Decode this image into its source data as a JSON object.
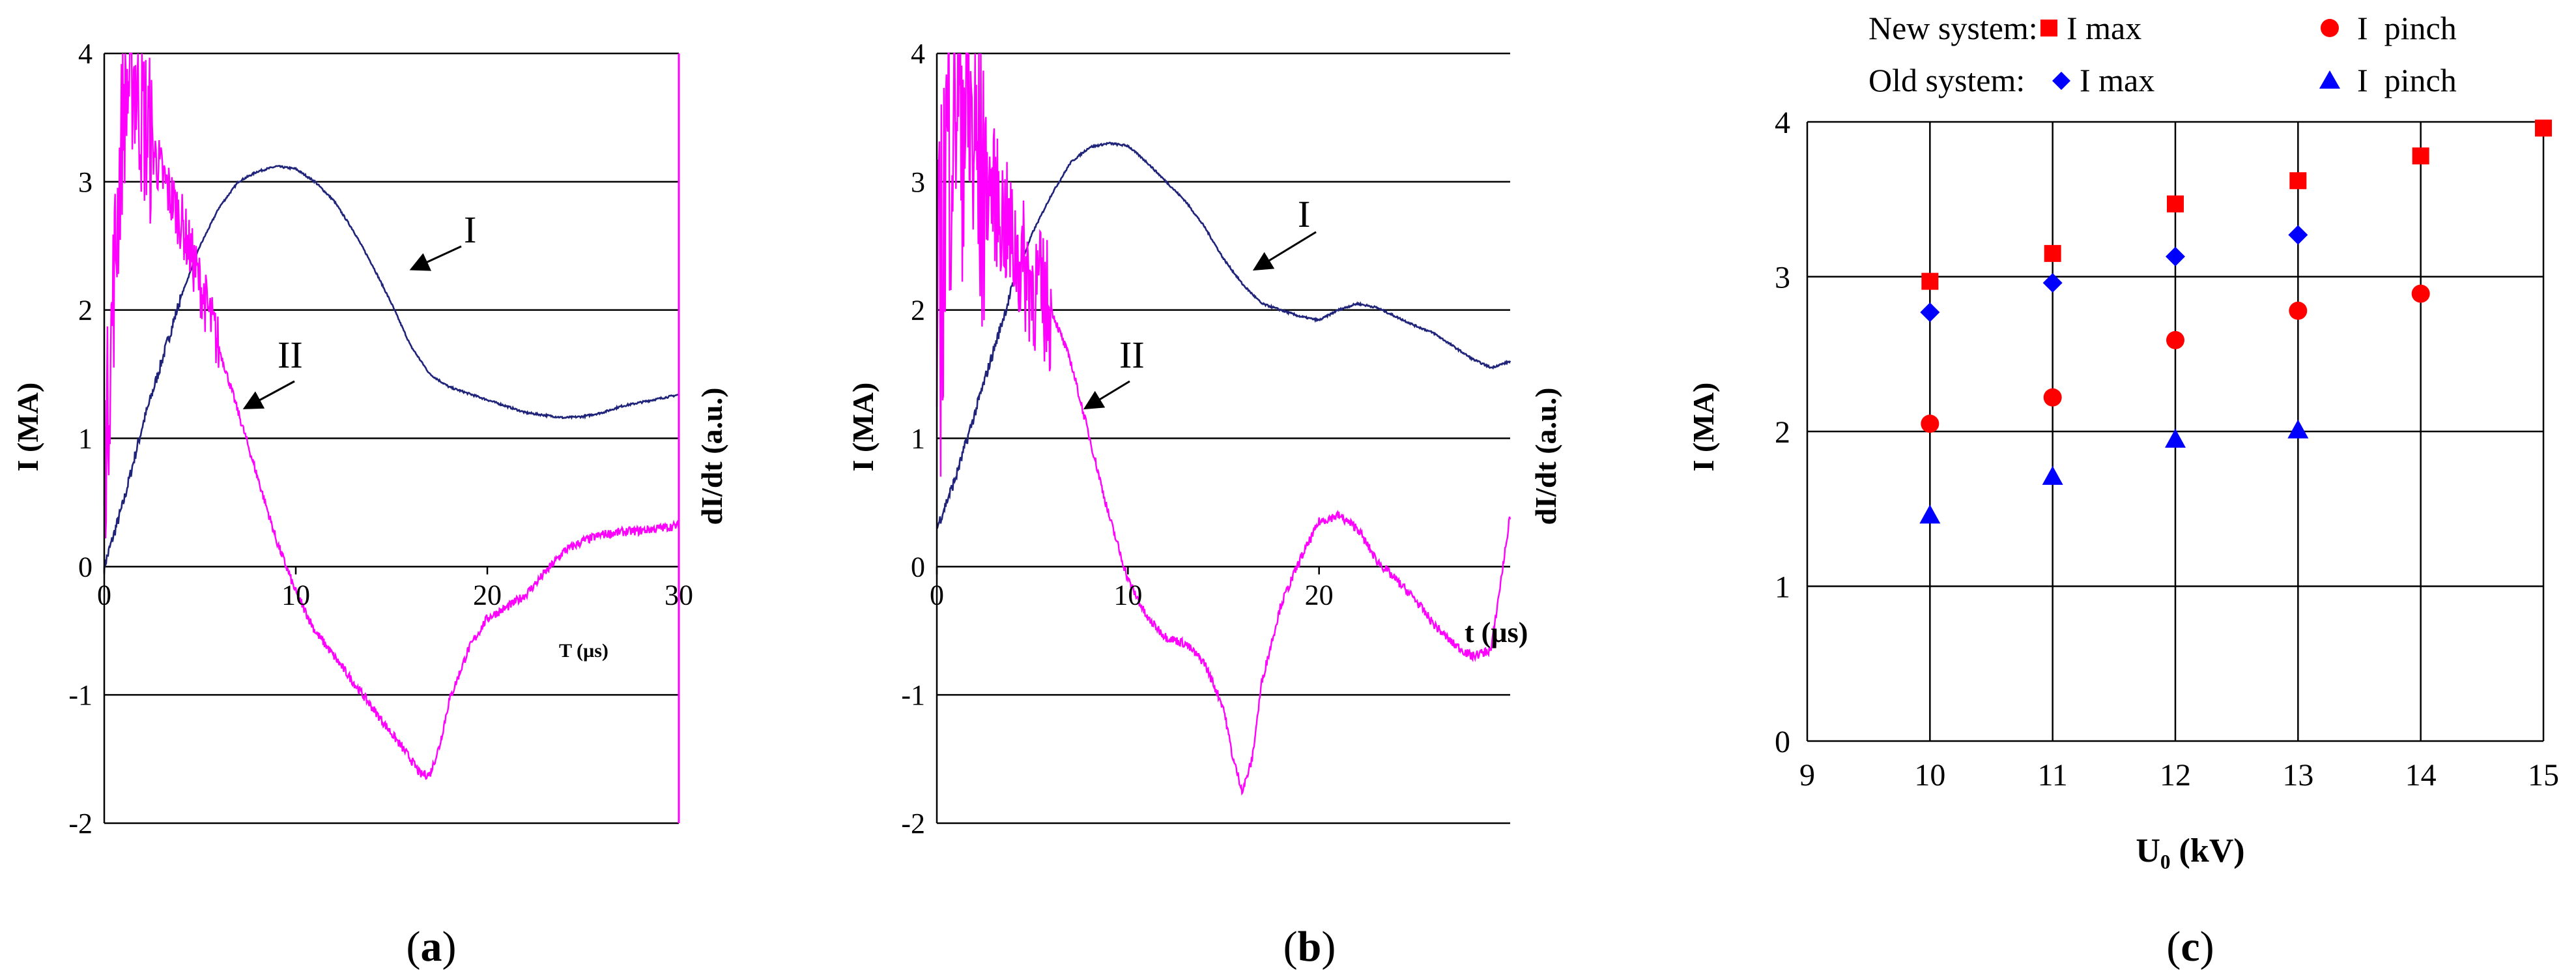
{
  "panels": {
    "a": {
      "caption_open": "(",
      "caption_letter": "a",
      "caption_close": ")"
    },
    "b": {
      "caption_open": "(",
      "caption_letter": "b",
      "caption_close": ")"
    },
    "c": {
      "caption_open": "(",
      "caption_letter": "c",
      "caption_close": ")"
    }
  },
  "legend": {
    "new_system": "New system:",
    "old_system": "Old system:",
    "i_max": "I max",
    "i_pinch": "I  pinch"
  },
  "colors": {
    "blue_trace": "#1f237a",
    "magenta_trace": "#ff00ff",
    "new_marker": "#ff0000",
    "old_marker": "#0000ff"
  },
  "chart_data": [
    {
      "type": "line",
      "panel": "a",
      "xlabel": "T (µs)",
      "ylabel": "I (MA)",
      "y2label": "dI/dt (a.u.)",
      "xlim": [
        0,
        30
      ],
      "ylim": [
        -2,
        4
      ],
      "xticks": [
        "0",
        "10",
        "20",
        "30"
      ],
      "yticks": [
        "-2",
        "-1",
        "0",
        "1",
        "2",
        "3",
        "4"
      ],
      "annotations": [
        "I",
        "II"
      ],
      "series": [
        {
          "name": "I",
          "x": [
            0,
            1,
            2,
            3,
            4,
            5,
            6,
            7,
            8,
            9,
            10,
            11,
            12,
            13,
            14,
            15,
            16,
            17,
            18,
            19,
            20,
            21,
            22,
            23,
            24,
            25,
            26,
            27,
            28,
            29,
            30
          ],
          "values": [
            0.0,
            0.5,
            1.1,
            1.6,
            2.1,
            2.5,
            2.8,
            3.0,
            3.08,
            3.12,
            3.1,
            3.0,
            2.85,
            2.62,
            2.35,
            2.05,
            1.72,
            1.5,
            1.4,
            1.35,
            1.3,
            1.25,
            1.2,
            1.18,
            1.16,
            1.17,
            1.2,
            1.25,
            1.28,
            1.31,
            1.34
          ]
        },
        {
          "name": "II",
          "x": [
            0,
            0.5,
            1,
            1.5,
            2,
            3,
            4,
            5,
            6,
            7,
            8,
            9,
            10,
            11,
            12,
            13,
            14,
            15,
            16,
            16.5,
            17,
            17.5,
            18,
            19,
            20,
            21,
            22,
            23,
            24,
            25,
            26,
            27,
            28,
            29,
            30
          ],
          "values": [
            0.7,
            2.2,
            3.6,
            3.9,
            3.5,
            3.05,
            2.7,
            2.2,
            1.7,
            1.2,
            0.7,
            0.2,
            -0.2,
            -0.5,
            -0.7,
            -0.9,
            -1.1,
            -1.3,
            -1.5,
            -1.62,
            -1.62,
            -1.4,
            -1.05,
            -0.65,
            -0.4,
            -0.32,
            -0.22,
            -0.05,
            0.12,
            0.2,
            0.25,
            0.27,
            0.28,
            0.3,
            0.32
          ]
        }
      ]
    },
    {
      "type": "line",
      "panel": "b",
      "xlabel": "t (µs)",
      "ylabel": "I (MA)",
      "y2label": "dI/dt (a.u.)",
      "xlim": [
        0,
        30
      ],
      "ylim": [
        -2,
        4
      ],
      "xticks": [
        "0",
        "10",
        "20"
      ],
      "yticks": [
        "-2",
        "-1",
        "0",
        "1",
        "2",
        "3",
        "4"
      ],
      "annotations": [
        "I",
        "II"
      ],
      "series": [
        {
          "name": "I",
          "x": [
            0,
            1,
            2,
            3,
            4,
            5,
            6,
            7,
            8,
            9,
            10,
            11,
            12,
            13,
            14,
            15,
            16,
            17,
            18,
            19,
            20,
            21,
            22,
            23,
            24,
            25,
            26,
            27,
            28,
            29,
            30
          ],
          "values": [
            0.3,
            0.7,
            1.2,
            1.7,
            2.2,
            2.6,
            2.9,
            3.15,
            3.27,
            3.3,
            3.28,
            3.15,
            3.0,
            2.85,
            2.65,
            2.4,
            2.2,
            2.05,
            2.0,
            1.95,
            1.92,
            2.0,
            2.05,
            2.02,
            1.95,
            1.88,
            1.82,
            1.72,
            1.62,
            1.55,
            1.6
          ]
        },
        {
          "name": "II",
          "x": [
            0,
            0.5,
            1,
            1.5,
            2,
            3,
            4,
            5,
            6,
            7,
            8,
            9,
            10,
            11,
            12,
            13,
            14,
            15,
            15.5,
            16,
            16.5,
            17,
            18,
            19,
            20,
            21,
            22,
            23,
            24,
            25,
            26,
            27,
            28,
            29,
            30
          ],
          "values": [
            1.5,
            3.2,
            3.9,
            3.6,
            3.2,
            2.9,
            2.5,
            2.2,
            2.0,
            1.6,
            1.0,
            0.4,
            -0.1,
            -0.4,
            -0.55,
            -0.6,
            -0.75,
            -1.1,
            -1.5,
            -1.75,
            -1.5,
            -0.9,
            -0.3,
            0.05,
            0.35,
            0.4,
            0.3,
            0.05,
            -0.1,
            -0.25,
            -0.45,
            -0.6,
            -0.7,
            -0.65,
            0.4
          ]
        }
      ]
    },
    {
      "type": "scatter",
      "panel": "c",
      "xlabel": "U₀ (kV)",
      "ylabel": "I (MA)",
      "xlim": [
        9,
        15
      ],
      "ylim": [
        0,
        4
      ],
      "xticks": [
        "9",
        "10",
        "11",
        "12",
        "13",
        "14",
        "15"
      ],
      "yticks": [
        "0",
        "1",
        "2",
        "3",
        "4"
      ],
      "series": [
        {
          "name": "New system: I max",
          "marker": "square",
          "x": [
            10,
            11,
            12,
            13,
            14,
            15
          ],
          "values": [
            2.97,
            3.15,
            3.47,
            3.62,
            3.78,
            3.96
          ]
        },
        {
          "name": "New system: I  pinch",
          "marker": "circle",
          "x": [
            10,
            11,
            12,
            13,
            14
          ],
          "values": [
            2.05,
            2.22,
            2.59,
            2.78,
            2.89
          ]
        },
        {
          "name": "Old system: I max",
          "marker": "diamond",
          "x": [
            10,
            11,
            12,
            13
          ],
          "values": [
            2.77,
            2.96,
            3.13,
            3.27
          ]
        },
        {
          "name": "Old system: I  pinch",
          "marker": "triangle",
          "x": [
            10,
            11,
            12,
            13
          ],
          "values": [
            1.46,
            1.71,
            1.95,
            2.01
          ]
        }
      ]
    }
  ]
}
